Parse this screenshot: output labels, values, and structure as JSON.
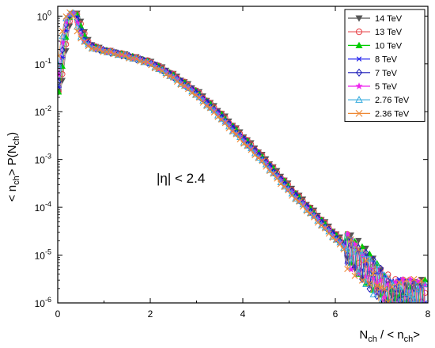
{
  "chart_data": {
    "type": "scatter",
    "title": "",
    "xlabel_main": "N",
    "xlabel_sub1": "ch",
    "xlabel_mid": " / < n",
    "xlabel_sub2": "ch",
    "xlabel_end": ">",
    "ylabel_a": "< n",
    "ylabel_sub1": "ch",
    "ylabel_b": "> P(N",
    "ylabel_sub2": "ch",
    "ylabel_c": ")",
    "annotation": "|η| < 2.4",
    "xlim": [
      0,
      8
    ],
    "ylim": [
      1e-06,
      1.6
    ],
    "yscale": "log",
    "grid": false,
    "legend_position": "top-right",
    "x_ticks": [
      0,
      2,
      4,
      6,
      8
    ],
    "x_tick_labels": [
      "0",
      "2",
      "4",
      "6",
      "8"
    ],
    "y_ticks": [
      1e-06,
      1e-05,
      0.0001,
      0.001,
      0.01,
      0.1,
      1
    ],
    "y_tick_bases": [
      "10",
      "10",
      "10",
      "10",
      "10",
      "10",
      "10"
    ],
    "y_tick_exps": [
      "-6",
      "-5",
      "-4",
      "-3",
      "-2",
      "-1",
      "0"
    ],
    "curve_shape": {
      "x": [
        0.0,
        0.05,
        0.1,
        0.15,
        0.2,
        0.25,
        0.3,
        0.35,
        0.4,
        0.5,
        0.6,
        0.7,
        0.8,
        1.0,
        1.2,
        1.5,
        2.0,
        2.5,
        3.0,
        3.5,
        4.0,
        4.5,
        5.0,
        5.5,
        6.0,
        6.5,
        7.0,
        7.2,
        7.4,
        7.6,
        8.0
      ],
      "log10_y": [
        -1.6,
        -1.3,
        -0.85,
        -0.5,
        -0.2,
        0.0,
        0.05,
        0.07,
        0.05,
        -0.3,
        -0.5,
        -0.6,
        -0.66,
        -0.72,
        -0.76,
        -0.83,
        -0.97,
        -1.25,
        -1.6,
        -2.05,
        -2.55,
        -3.05,
        -3.6,
        -4.1,
        -4.6,
        -5.1,
        -5.6,
        -5.85,
        -5.85,
        -5.85,
        -5.85
      ]
    },
    "series": [
      {
        "name": "14 TeV",
        "marker": "triangle-down-filled",
        "color": "#555555",
        "x_shift": 0.06
      },
      {
        "name": "13 TeV",
        "marker": "circle-open",
        "color": "#e8454a",
        "x_shift": 0.04
      },
      {
        "name": "10 TeV",
        "marker": "triangle-up-filled",
        "color": "#00cc00",
        "x_shift": 0.02
      },
      {
        "name": "8 TeV",
        "marker": "asterisk",
        "color": "#2020ee",
        "x_shift": 0.0
      },
      {
        "name": "7 TeV",
        "marker": "diamond-open",
        "color": "#1a1ab8",
        "x_shift": -0.02
      },
      {
        "name": "5 TeV",
        "marker": "star-filled",
        "color": "#ee22ee",
        "x_shift": -0.04
      },
      {
        "name": "2.76 TeV",
        "marker": "triangle-up-open",
        "color": "#33aadd",
        "x_shift": -0.06
      },
      {
        "name": "2.36 TeV",
        "marker": "x-cross",
        "color": "#ee8833",
        "x_shift": -0.08
      }
    ]
  }
}
